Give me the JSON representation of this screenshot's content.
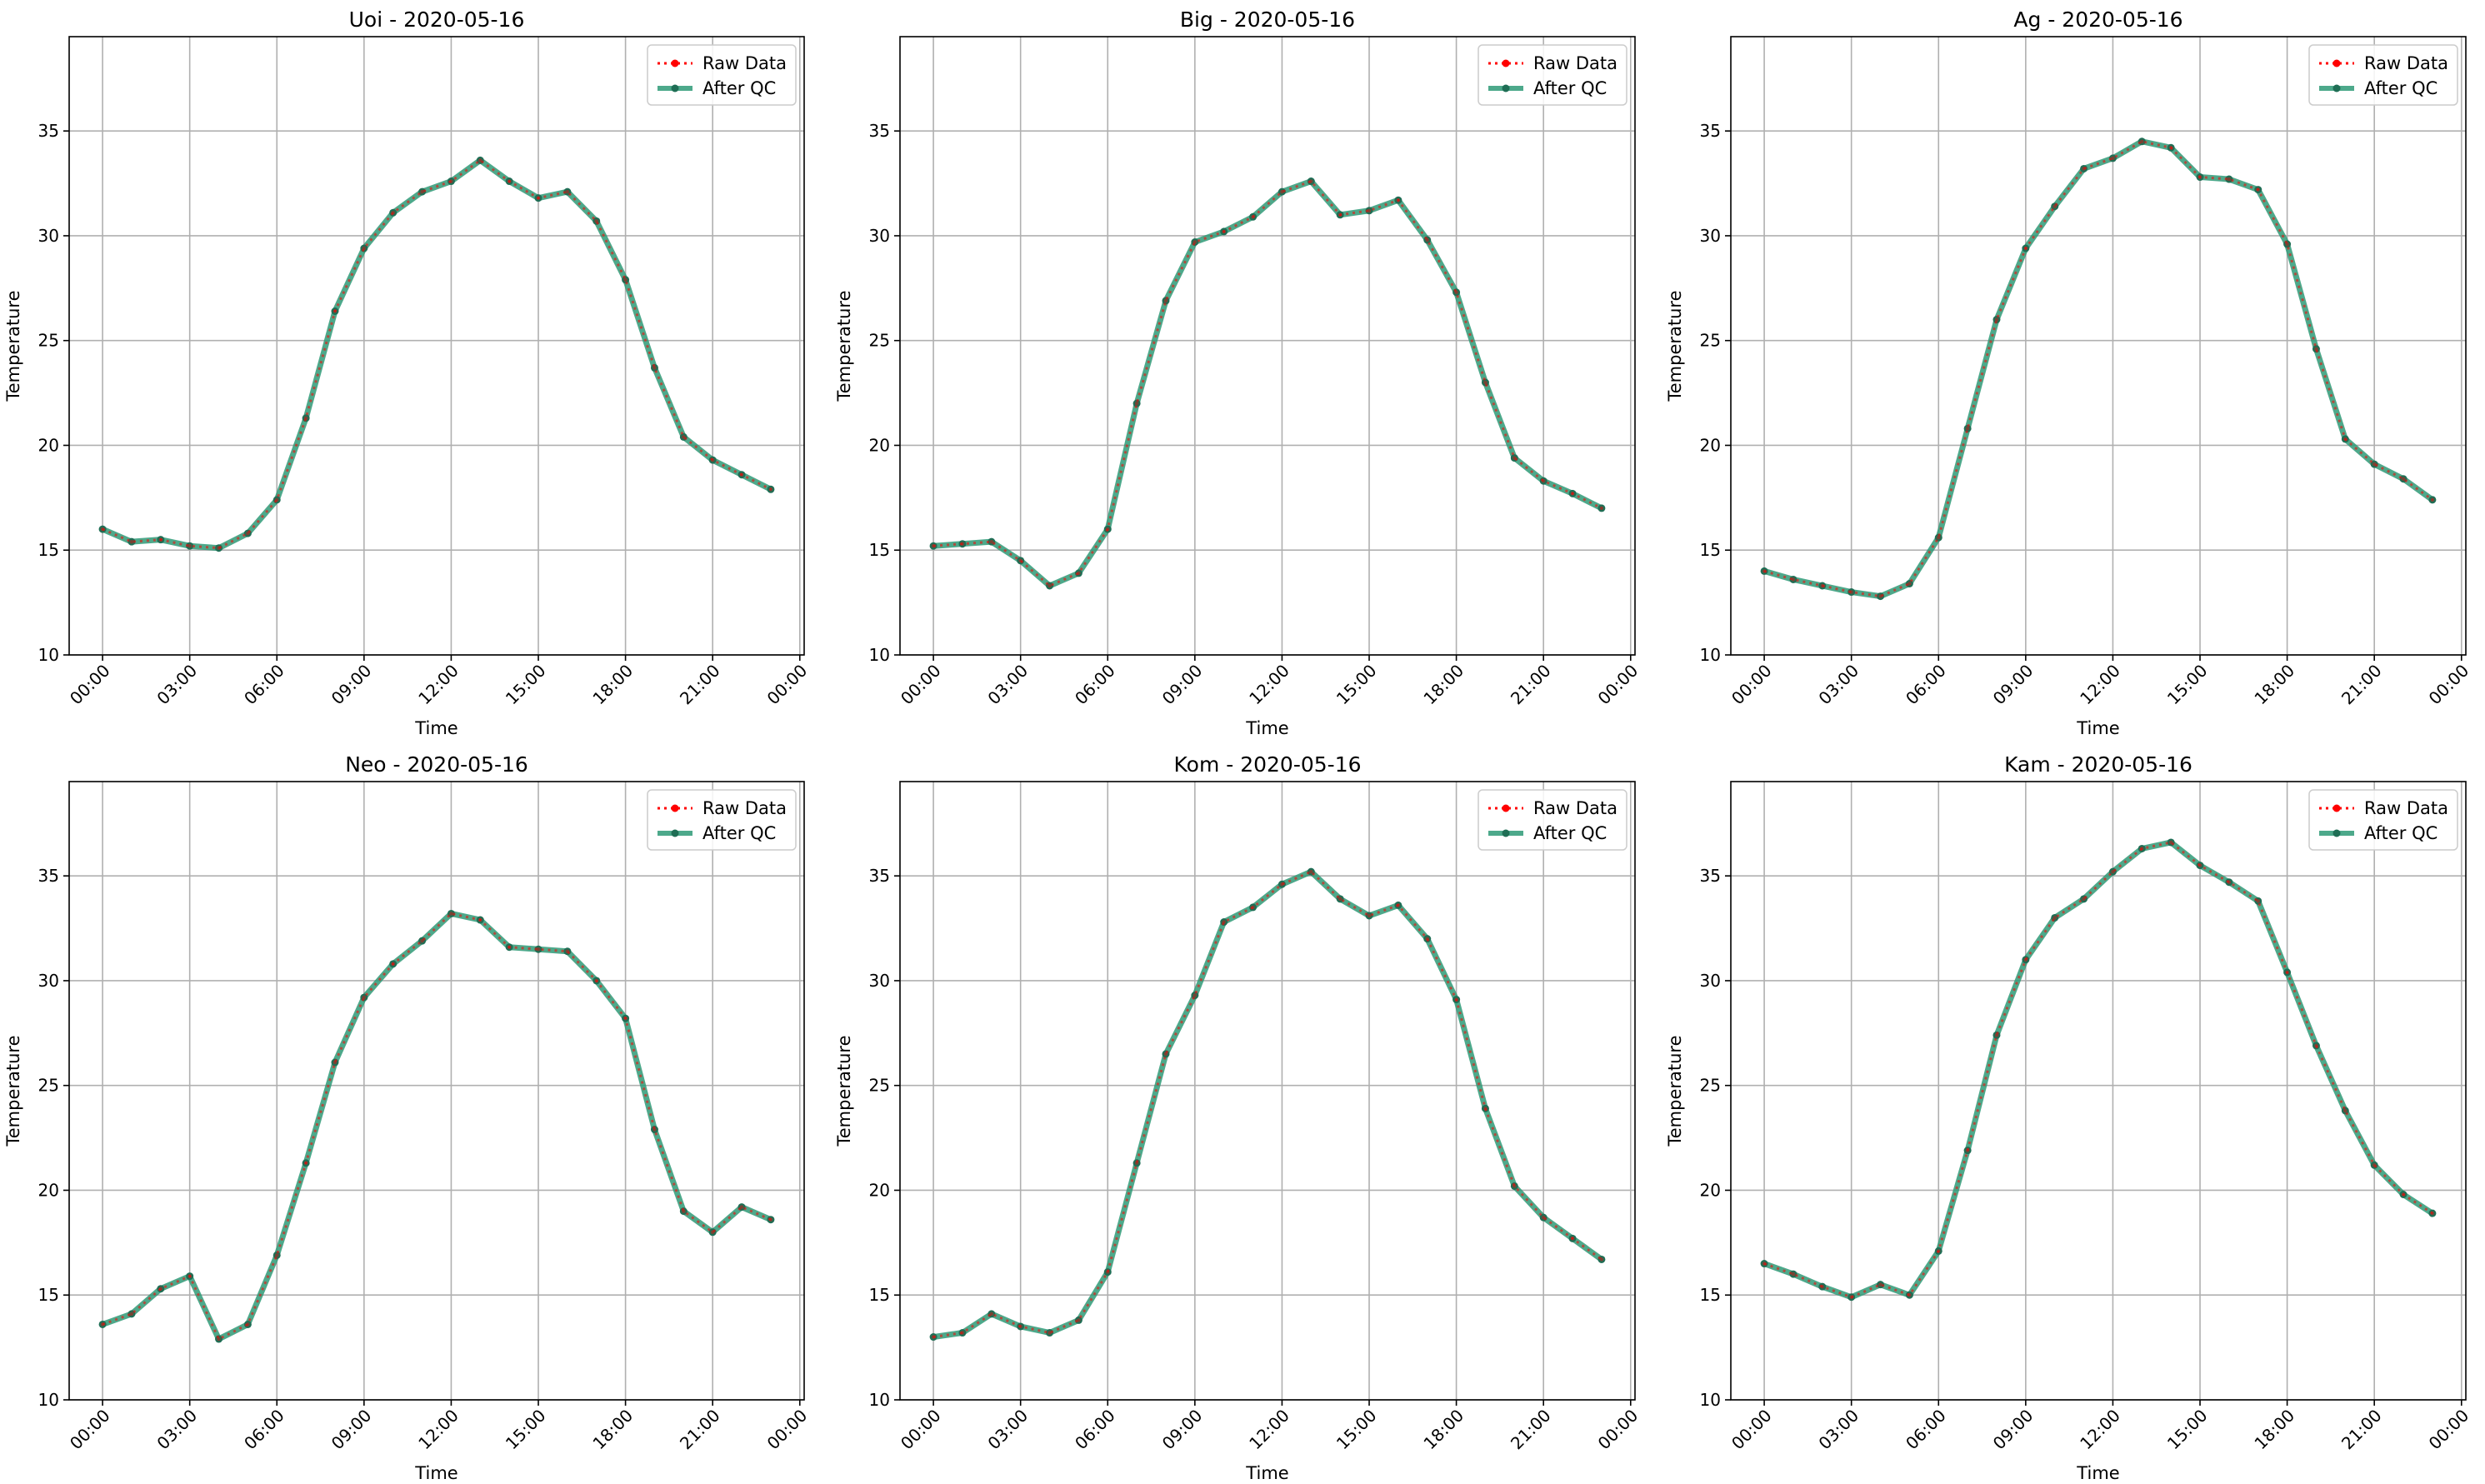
{
  "colors": {
    "raw": "#ff0000",
    "qc": "#2e9a77",
    "qc_marker": "#1f6e55",
    "grid": "#b0b0b0",
    "axis": "#000000"
  },
  "legend": {
    "placement": "upper right",
    "raw_label": "Raw Data",
    "qc_label": "After QC"
  },
  "chart_data": [
    {
      "type": "line",
      "title": "Uoi - 2020-05-16",
      "xlabel": "Time",
      "ylabel": "Temperature",
      "xlim": [
        "00:00",
        "24:00"
      ],
      "ylim": [
        10,
        39.5
      ],
      "grid": true,
      "legend": "upper right",
      "xticks": [
        "00:00",
        "03:00",
        "06:00",
        "09:00",
        "12:00",
        "15:00",
        "18:00",
        "21:00",
        "00:00"
      ],
      "yticks": [
        10,
        15,
        20,
        25,
        30,
        35
      ],
      "x": [
        "00:00",
        "01:00",
        "02:00",
        "03:00",
        "04:00",
        "05:00",
        "06:00",
        "07:00",
        "08:00",
        "09:00",
        "10:00",
        "11:00",
        "12:00",
        "13:00",
        "14:00",
        "15:00",
        "16:00",
        "17:00",
        "18:00",
        "19:00",
        "20:00",
        "21:00",
        "22:00",
        "23:00"
      ],
      "series": [
        {
          "name": "Raw Data",
          "values": [
            16.0,
            15.4,
            15.5,
            15.2,
            15.1,
            15.8,
            17.4,
            21.3,
            26.4,
            29.4,
            31.1,
            32.1,
            32.6,
            33.6,
            32.6,
            31.8,
            32.1,
            30.7,
            27.9,
            23.7,
            20.4,
            19.3,
            18.6,
            17.9
          ]
        },
        {
          "name": "After QC",
          "values": [
            16.0,
            15.4,
            15.5,
            15.2,
            15.1,
            15.8,
            17.4,
            21.3,
            26.4,
            29.4,
            31.1,
            32.1,
            32.6,
            33.6,
            32.6,
            31.8,
            32.1,
            30.7,
            27.9,
            23.7,
            20.4,
            19.3,
            18.6,
            17.9
          ]
        }
      ]
    },
    {
      "type": "line",
      "title": "Big - 2020-05-16",
      "xlabel": "Time",
      "ylabel": "Temperature",
      "xlim": [
        "00:00",
        "24:00"
      ],
      "ylim": [
        10,
        39.5
      ],
      "grid": true,
      "legend": "upper right",
      "xticks": [
        "00:00",
        "03:00",
        "06:00",
        "09:00",
        "12:00",
        "15:00",
        "18:00",
        "21:00",
        "00:00"
      ],
      "yticks": [
        10,
        15,
        20,
        25,
        30,
        35
      ],
      "x": [
        "00:00",
        "01:00",
        "02:00",
        "03:00",
        "04:00",
        "05:00",
        "06:00",
        "07:00",
        "08:00",
        "09:00",
        "10:00",
        "11:00",
        "12:00",
        "13:00",
        "14:00",
        "15:00",
        "16:00",
        "17:00",
        "18:00",
        "19:00",
        "20:00",
        "21:00",
        "22:00",
        "23:00"
      ],
      "series": [
        {
          "name": "Raw Data",
          "values": [
            15.2,
            15.3,
            15.4,
            14.5,
            13.3,
            13.9,
            16.0,
            22.0,
            26.9,
            29.7,
            30.2,
            30.9,
            32.1,
            32.6,
            31.0,
            31.2,
            31.7,
            29.8,
            27.3,
            23.0,
            19.4,
            18.3,
            17.7,
            17.0
          ]
        },
        {
          "name": "After QC",
          "values": [
            15.2,
            15.3,
            15.4,
            14.5,
            13.3,
            13.9,
            16.0,
            22.0,
            26.9,
            29.7,
            30.2,
            30.9,
            32.1,
            32.6,
            31.0,
            31.2,
            31.7,
            29.8,
            27.3,
            23.0,
            19.4,
            18.3,
            17.7,
            17.0
          ]
        }
      ]
    },
    {
      "type": "line",
      "title": "Ag - 2020-05-16",
      "xlabel": "Time",
      "ylabel": "Temperature",
      "xlim": [
        "00:00",
        "24:00"
      ],
      "ylim": [
        10,
        39.5
      ],
      "grid": true,
      "legend": "upper right",
      "xticks": [
        "00:00",
        "03:00",
        "06:00",
        "09:00",
        "12:00",
        "15:00",
        "18:00",
        "21:00",
        "00:00"
      ],
      "yticks": [
        10,
        15,
        20,
        25,
        30,
        35
      ],
      "x": [
        "00:00",
        "01:00",
        "02:00",
        "03:00",
        "04:00",
        "05:00",
        "06:00",
        "07:00",
        "08:00",
        "09:00",
        "10:00",
        "11:00",
        "12:00",
        "13:00",
        "14:00",
        "15:00",
        "16:00",
        "17:00",
        "18:00",
        "19:00",
        "20:00",
        "21:00",
        "22:00",
        "23:00"
      ],
      "series": [
        {
          "name": "Raw Data",
          "values": [
            14.0,
            13.6,
            13.3,
            13.0,
            12.8,
            13.4,
            15.6,
            20.8,
            26.0,
            29.4,
            31.4,
            33.2,
            33.7,
            34.5,
            34.2,
            32.8,
            32.7,
            32.2,
            29.6,
            24.6,
            20.3,
            19.1,
            18.4,
            17.4
          ]
        },
        {
          "name": "After QC",
          "values": [
            14.0,
            13.6,
            13.3,
            13.0,
            12.8,
            13.4,
            15.6,
            20.8,
            26.0,
            29.4,
            31.4,
            33.2,
            33.7,
            34.5,
            34.2,
            32.8,
            32.7,
            32.2,
            29.6,
            24.6,
            20.3,
            19.1,
            18.4,
            17.4
          ]
        }
      ]
    },
    {
      "type": "line",
      "title": "Neo - 2020-05-16",
      "xlabel": "Time",
      "ylabel": "Temperature",
      "xlim": [
        "00:00",
        "24:00"
      ],
      "ylim": [
        10,
        39.5
      ],
      "grid": true,
      "legend": "upper right",
      "xticks": [
        "00:00",
        "03:00",
        "06:00",
        "09:00",
        "12:00",
        "15:00",
        "18:00",
        "21:00",
        "00:00"
      ],
      "yticks": [
        10,
        15,
        20,
        25,
        30,
        35
      ],
      "x": [
        "00:00",
        "01:00",
        "02:00",
        "03:00",
        "04:00",
        "05:00",
        "06:00",
        "07:00",
        "08:00",
        "09:00",
        "10:00",
        "11:00",
        "12:00",
        "13:00",
        "14:00",
        "15:00",
        "16:00",
        "17:00",
        "18:00",
        "19:00",
        "20:00",
        "21:00",
        "22:00",
        "23:00"
      ],
      "series": [
        {
          "name": "Raw Data",
          "values": [
            13.6,
            14.1,
            15.3,
            15.9,
            12.9,
            13.6,
            16.9,
            21.3,
            26.1,
            29.2,
            30.8,
            31.9,
            33.2,
            32.9,
            31.6,
            31.5,
            31.4,
            30.0,
            28.2,
            22.9,
            19.0,
            18.0,
            19.2,
            18.6
          ]
        },
        {
          "name": "After QC",
          "values": [
            13.6,
            14.1,
            15.3,
            15.9,
            12.9,
            13.6,
            16.9,
            21.3,
            26.1,
            29.2,
            30.8,
            31.9,
            33.2,
            32.9,
            31.6,
            31.5,
            31.4,
            30.0,
            28.2,
            22.9,
            19.0,
            18.0,
            19.2,
            18.6
          ]
        }
      ]
    },
    {
      "type": "line",
      "title": "Kom - 2020-05-16",
      "xlabel": "Time",
      "ylabel": "Temperature",
      "xlim": [
        "00:00",
        "24:00"
      ],
      "ylim": [
        10,
        39.5
      ],
      "grid": true,
      "legend": "upper right",
      "xticks": [
        "00:00",
        "03:00",
        "06:00",
        "09:00",
        "12:00",
        "15:00",
        "18:00",
        "21:00",
        "00:00"
      ],
      "yticks": [
        10,
        15,
        20,
        25,
        30,
        35
      ],
      "x": [
        "00:00",
        "01:00",
        "02:00",
        "03:00",
        "04:00",
        "05:00",
        "06:00",
        "07:00",
        "08:00",
        "09:00",
        "10:00",
        "11:00",
        "12:00",
        "13:00",
        "14:00",
        "15:00",
        "16:00",
        "17:00",
        "18:00",
        "19:00",
        "20:00",
        "21:00",
        "22:00",
        "23:00"
      ],
      "series": [
        {
          "name": "Raw Data",
          "values": [
            13.0,
            13.2,
            14.1,
            13.5,
            13.2,
            13.8,
            16.1,
            21.3,
            26.5,
            29.3,
            32.8,
            33.5,
            34.6,
            35.2,
            33.9,
            33.1,
            33.6,
            32.0,
            29.1,
            23.9,
            20.2,
            18.7,
            17.7,
            16.7
          ]
        },
        {
          "name": "After QC",
          "values": [
            13.0,
            13.2,
            14.1,
            13.5,
            13.2,
            13.8,
            16.1,
            21.3,
            26.5,
            29.3,
            32.8,
            33.5,
            34.6,
            35.2,
            33.9,
            33.1,
            33.6,
            32.0,
            29.1,
            23.9,
            20.2,
            18.7,
            17.7,
            16.7
          ]
        }
      ]
    },
    {
      "type": "line",
      "title": "Kam - 2020-05-16",
      "xlabel": "Time",
      "ylabel": "Temperature",
      "xlim": [
        "00:00",
        "24:00"
      ],
      "ylim": [
        10,
        39.5
      ],
      "grid": true,
      "legend": "upper right",
      "xticks": [
        "00:00",
        "03:00",
        "06:00",
        "09:00",
        "12:00",
        "15:00",
        "18:00",
        "21:00",
        "00:00"
      ],
      "yticks": [
        10,
        15,
        20,
        25,
        30,
        35
      ],
      "x": [
        "00:00",
        "01:00",
        "02:00",
        "03:00",
        "04:00",
        "05:00",
        "06:00",
        "07:00",
        "08:00",
        "09:00",
        "10:00",
        "11:00",
        "12:00",
        "13:00",
        "14:00",
        "15:00",
        "16:00",
        "17:00",
        "18:00",
        "19:00",
        "20:00",
        "21:00",
        "22:00",
        "23:00"
      ],
      "series": [
        {
          "name": "Raw Data",
          "values": [
            16.5,
            16.0,
            15.4,
            14.9,
            15.5,
            15.0,
            17.1,
            21.9,
            27.4,
            31.0,
            33.0,
            33.9,
            35.2,
            36.3,
            36.6,
            35.5,
            34.7,
            33.8,
            30.4,
            26.9,
            23.8,
            21.2,
            19.8,
            18.9
          ]
        },
        {
          "name": "After QC",
          "values": [
            16.5,
            16.0,
            15.4,
            14.9,
            15.5,
            15.0,
            17.1,
            21.9,
            27.4,
            31.0,
            33.0,
            33.9,
            35.2,
            36.3,
            36.6,
            35.5,
            34.7,
            33.8,
            30.4,
            26.9,
            23.8,
            21.2,
            19.8,
            18.9
          ]
        }
      ]
    }
  ]
}
